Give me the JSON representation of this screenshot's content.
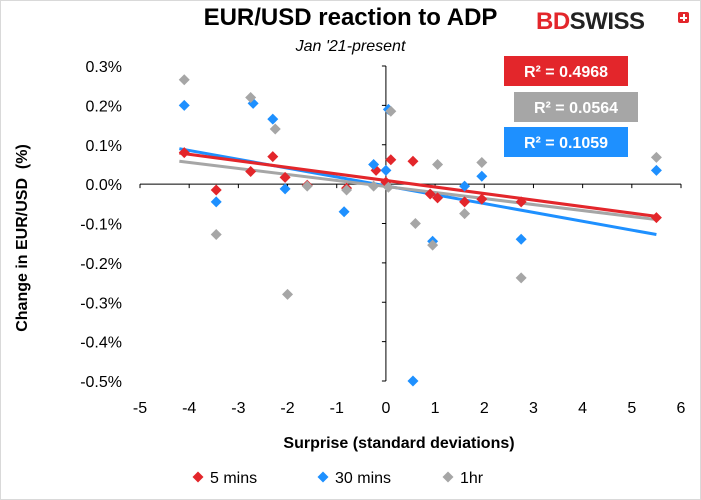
{
  "title": "EUR/USD reaction to ADP",
  "subtitle": "Jan '21-present",
  "logo": {
    "part1": "BD",
    "part2": "SWISS"
  },
  "chart_data": {
    "type": "scatter",
    "title": "EUR/USD reaction to ADP",
    "subtitle": "Jan '21-present",
    "xlabel": "Surprise (standard deviations)",
    "ylabel": "Change in EUR/USD  (%)",
    "xlim": [
      -5,
      6
    ],
    "ylim": [
      -0.5,
      0.3
    ],
    "x_ticks": [
      "-5",
      "-4",
      "-3",
      "-2",
      "-1",
      "0",
      "1",
      "2",
      "3",
      "4",
      "5",
      "6"
    ],
    "y_ticks": [
      "0.3%",
      "0.2%",
      "0.1%",
      "0.0%",
      "-0.1%",
      "-0.2%",
      "-0.3%",
      "-0.4%",
      "-0.5%"
    ],
    "grid": false,
    "legend_position": "bottom",
    "series": [
      {
        "name": "5 mins",
        "color": "#e3262b",
        "r2_label": "R² = 0.4968",
        "trendline": [
          [
            -4.2,
            0.079
          ],
          [
            5.5,
            -0.082
          ]
        ],
        "points": [
          [
            -4.1,
            0.08
          ],
          [
            -3.45,
            -0.015
          ],
          [
            -2.75,
            0.032
          ],
          [
            -2.3,
            0.07
          ],
          [
            -2.05,
            0.017
          ],
          [
            -1.6,
            -0.003
          ],
          [
            -0.8,
            -0.01
          ],
          [
            -0.2,
            0.035
          ],
          [
            0.1,
            0.062
          ],
          [
            0.55,
            0.058
          ],
          [
            0.0,
            0.005
          ],
          [
            0.9,
            -0.025
          ],
          [
            1.05,
            -0.035
          ],
          [
            1.6,
            -0.045
          ],
          [
            1.95,
            -0.038
          ],
          [
            2.75,
            -0.045
          ],
          [
            5.5,
            -0.085
          ]
        ]
      },
      {
        "name": "30 mins",
        "color": "#1e90ff",
        "r2_label": "R² = 0.1059",
        "trendline": [
          [
            -4.2,
            0.09
          ],
          [
            5.5,
            -0.128
          ]
        ],
        "points": [
          [
            -4.1,
            0.2
          ],
          [
            -3.45,
            -0.045
          ],
          [
            -2.7,
            0.205
          ],
          [
            -2.3,
            0.165
          ],
          [
            -2.05,
            -0.012
          ],
          [
            -0.85,
            -0.07
          ],
          [
            -0.25,
            0.05
          ],
          [
            0.05,
            0.19
          ],
          [
            0.0,
            0.035
          ],
          [
            0.55,
            -0.5
          ],
          [
            0.95,
            -0.145
          ],
          [
            1.6,
            -0.005
          ],
          [
            1.95,
            0.02
          ],
          [
            2.75,
            -0.14
          ],
          [
            5.5,
            0.035
          ]
        ]
      },
      {
        "name": "1hr",
        "color": "#a6a6a6",
        "r2_label": "R² = 0.0564",
        "trendline": [
          [
            -4.2,
            0.058
          ],
          [
            5.5,
            -0.09
          ]
        ],
        "points": [
          [
            -4.1,
            0.265
          ],
          [
            -3.45,
            -0.128
          ],
          [
            -2.75,
            0.22
          ],
          [
            -2.25,
            0.14
          ],
          [
            -2.0,
            -0.28
          ],
          [
            -1.6,
            -0.005
          ],
          [
            -0.8,
            -0.015
          ],
          [
            -0.25,
            -0.005
          ],
          [
            0.1,
            0.185
          ],
          [
            0.05,
            -0.008
          ],
          [
            0.6,
            -0.1
          ],
          [
            0.95,
            -0.155
          ],
          [
            1.05,
            0.05
          ],
          [
            1.6,
            -0.075
          ],
          [
            1.95,
            0.055
          ],
          [
            2.75,
            -0.238
          ],
          [
            5.5,
            0.068
          ]
        ]
      }
    ]
  }
}
